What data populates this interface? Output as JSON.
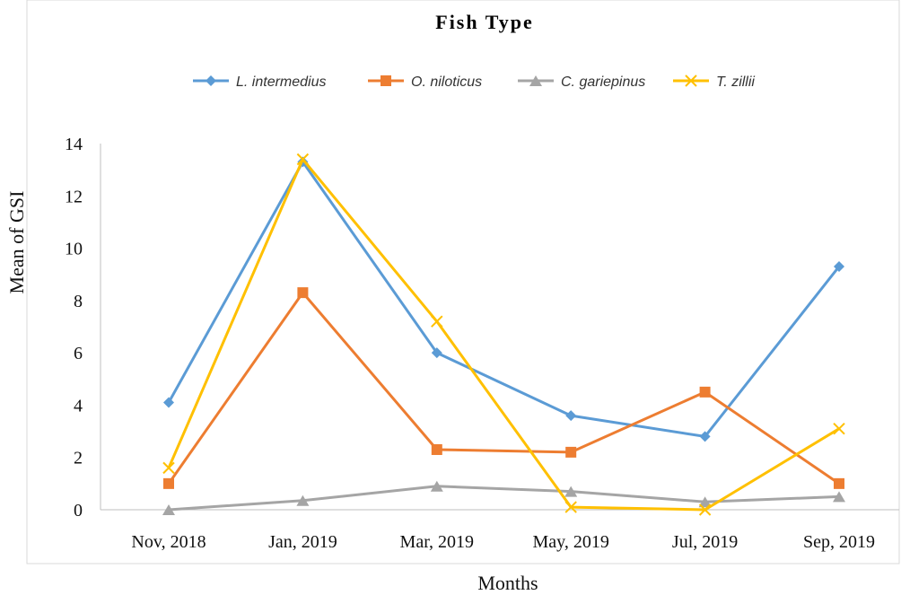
{
  "chart_data": {
    "type": "line",
    "title": "Fish Type",
    "xlabel": "Months",
    "ylabel": "Mean of GSI",
    "categories": [
      "Nov, 2018",
      "Jan, 2019",
      "Mar, 2019",
      "May, 2019",
      "Jul, 2019",
      "Sep, 2019"
    ],
    "ylim": [
      0,
      14
    ],
    "yticks": [
      0,
      2,
      4,
      6,
      8,
      10,
      12,
      14
    ],
    "grid": false,
    "legend": "top",
    "series": [
      {
        "name": "L. intermedius",
        "color": "#5B9BD5",
        "marker": "diamond",
        "values": [
          4.1,
          13.3,
          6.0,
          3.6,
          2.8,
          9.3
        ]
      },
      {
        "name": "O. niloticus",
        "color": "#ED7D31",
        "marker": "square",
        "values": [
          1.0,
          8.3,
          2.3,
          2.2,
          4.5,
          1.0
        ]
      },
      {
        "name": "C. gariepinus",
        "color": "#A5A5A5",
        "marker": "triangle",
        "values": [
          0.0,
          0.35,
          0.9,
          0.7,
          0.3,
          0.5
        ]
      },
      {
        "name": "T. zillii",
        "color": "#FFC000",
        "marker": "x",
        "values": [
          1.6,
          13.4,
          7.2,
          0.1,
          0.0,
          3.1
        ]
      }
    ]
  }
}
